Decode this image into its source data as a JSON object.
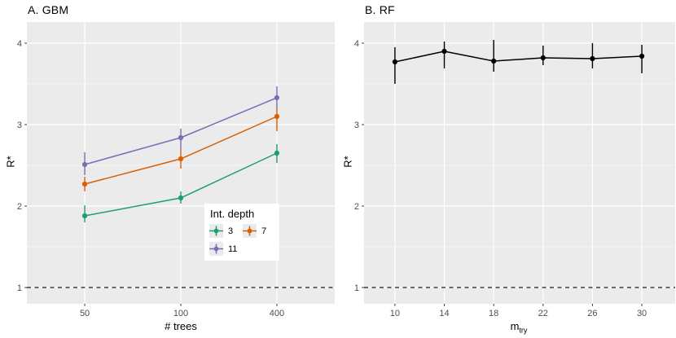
{
  "figure": {
    "background": "#ffffff",
    "panel_bg": "#ebebeb",
    "grid_color": "#ffffff",
    "tick_color": "#333333",
    "tick_label_color": "#4d4d4d",
    "dashed_line_color": "#1a1a1a"
  },
  "panels": [
    {
      "title": "A. GBM",
      "ylabel": "R*",
      "xlabel": "# trees"
    },
    {
      "title": "B. RF",
      "ylabel": "R*",
      "xlabel_base": "m",
      "xlabel_sub": "try"
    }
  ],
  "legend": {
    "title": "Int. depth",
    "items": [
      {
        "label": "3",
        "color": "#1b9e77"
      },
      {
        "label": "7",
        "color": "#d95f02"
      },
      {
        "label": "11",
        "color": "#7570b3"
      }
    ]
  },
  "chart_data": [
    {
      "type": "line",
      "title": "A. GBM",
      "xlabel": "# trees",
      "ylabel": "R*",
      "x_type": "discrete",
      "categories": [
        "50",
        "100",
        "400"
      ],
      "ylim": [
        0.8,
        4.26
      ],
      "y_major_ticks": [
        1,
        2,
        3,
        4
      ],
      "y_minor_ticks": [
        1.5,
        2.5,
        3.5
      ],
      "hline_dashed_y": 1,
      "legend_title": "Int. depth",
      "legend_position": "inside bottom-right of panel",
      "series": [
        {
          "name": "3",
          "color": "#1b9e77",
          "values": [
            1.88,
            2.1,
            2.65
          ],
          "ci_low": [
            1.8,
            2.03,
            2.53
          ],
          "ci_high": [
            2.01,
            2.18,
            2.76
          ]
        },
        {
          "name": "7",
          "color": "#d95f02",
          "values": [
            2.27,
            2.58,
            3.1
          ],
          "ci_low": [
            2.18,
            2.46,
            2.92
          ],
          "ci_high": [
            2.36,
            2.68,
            3.21
          ]
        },
        {
          "name": "11",
          "color": "#7570b3",
          "values": [
            2.51,
            2.84,
            3.33
          ],
          "ci_low": [
            2.38,
            2.68,
            3.2
          ],
          "ci_high": [
            2.66,
            2.95,
            3.47
          ]
        }
      ]
    },
    {
      "type": "line",
      "title": "B. RF",
      "xlabel": "m_try",
      "ylabel": "R*",
      "x_type": "linear",
      "x": [
        10,
        14,
        18,
        22,
        26,
        30
      ],
      "x_ticks": [
        10,
        14,
        18,
        22,
        26,
        30
      ],
      "xlim": [
        7.5,
        32.7
      ],
      "ylim": [
        0.8,
        4.26
      ],
      "y_major_ticks": [
        1,
        2,
        3,
        4
      ],
      "y_minor_ticks": [
        1.5,
        2.5,
        3.5
      ],
      "hline_dashed_y": 1,
      "series": [
        {
          "name": "RF",
          "color": "#000000",
          "values": [
            3.77,
            3.9,
            3.78,
            3.82,
            3.81,
            3.84
          ],
          "ci_low": [
            3.5,
            3.69,
            3.65,
            3.73,
            3.69,
            3.63
          ],
          "ci_high": [
            3.95,
            4.02,
            4.04,
            3.97,
            4.0,
            3.98
          ]
        }
      ]
    }
  ]
}
